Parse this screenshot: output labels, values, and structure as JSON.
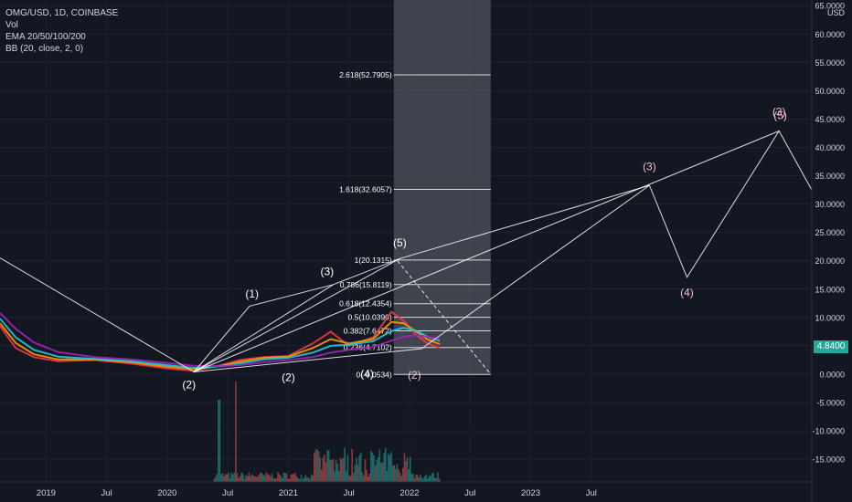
{
  "legend": {
    "symbol": "OMG/USD, 1D, COINBASE",
    "vol": "Vol",
    "ema": "EMA 20/50/100/200",
    "bb": "BB (20, close, 2, 0)"
  },
  "price_axis": {
    "currency": "USD",
    "current_price": "4.8400"
  },
  "colors": {
    "background": "#131722",
    "grid": "#1e222d",
    "text": "#d1d4dc",
    "price_tag": "#26a69a",
    "ema20": "#f23645",
    "ema50": "#ff9800",
    "ema100": "#26c6da",
    "ema200": "#9c27b0",
    "fib_zone": "#5d606b"
  },
  "chart_data": {
    "type": "line",
    "y_ticks": [
      "65.0000",
      "60.0000",
      "55.0000",
      "50.0000",
      "45.0000",
      "40.0000",
      "35.0000",
      "30.0000",
      "25.0000",
      "20.0000",
      "15.0000",
      "10.0000",
      "5.0000",
      "0.0000",
      "-5.0000",
      "-10.0000",
      "-15.0000"
    ],
    "y_tick_values": [
      65,
      60,
      55,
      50,
      45,
      40,
      35,
      30,
      25,
      20,
      15,
      10,
      5,
      0,
      -5,
      -10,
      -15
    ],
    "ylim": [
      -19,
      66
    ],
    "x_ticks": [
      "2019",
      "Jul",
      "2020",
      "Jul",
      "2021",
      "Jul",
      "2022",
      "Jul",
      "2023",
      "Jul"
    ],
    "x_tick_years": [
      2019.0,
      2019.5,
      2020.0,
      2020.5,
      2021.0,
      2021.5,
      2022.0,
      2022.5,
      2023.0,
      2023.5
    ],
    "xlim": [
      2018.62,
      2025.32
    ],
    "fibonacci": {
      "t_start": 2021.87,
      "t_end": 2022.67,
      "levels": [
        {
          "label": "2.618(52.7905)",
          "value": 52.7905
        },
        {
          "label": "1.618(32.6057)",
          "value": 32.6057
        },
        {
          "label": "1(20.1315)",
          "value": 20.1315
        },
        {
          "label": "0.786(15.8119)",
          "value": 15.8119
        },
        {
          "label": "0.618(12.4354)",
          "value": 12.4354
        },
        {
          "label": "0.5(10.0390)",
          "value": 10.039
        },
        {
          "label": "0.382(7.6472)",
          "value": 7.6472
        },
        {
          "label": "0.236(4.7102)",
          "value": 4.7102
        },
        {
          "label": "0(-0.0534)",
          "value": -0.0534
        }
      ]
    },
    "projection": {
      "points": [
        [
          2018.62,
          20.5
        ],
        [
          2020.22,
          0.4
        ],
        [
          2022.1,
          4.5
        ],
        [
          2023.98,
          33.3
        ],
        [
          2024.29,
          17.1
        ],
        [
          2025.05,
          42.9
        ],
        [
          2025.32,
          32.5
        ]
      ]
    },
    "channel_lines": [
      [
        [
          2020.22,
          0.4
        ],
        [
          2020.68,
          12.0
        ],
        [
          2021.37,
          15.8
        ],
        [
          2021.92,
          20.4
        ],
        [
          2023.98,
          33.3
        ]
      ],
      [
        [
          2020.22,
          0.4
        ],
        [
          2021.92,
          20.4
        ]
      ],
      [
        [
          2020.22,
          0.4
        ],
        [
          2021.37,
          15.8
        ]
      ],
      [
        [
          2020.22,
          0.4
        ],
        [
          2025.05,
          42.9
        ]
      ]
    ],
    "dashed_line": [
      [
        2021.9,
        20.0
      ],
      [
        2022.67,
        0.0
      ]
    ],
    "wave_labels": [
      {
        "label": "(1)",
        "t": 2020.7,
        "v": 13.5,
        "color": "#ffffff"
      },
      {
        "label": "(2)",
        "t": 2020.18,
        "v": -2.5,
        "color": "#ffffff"
      },
      {
        "label": "(2)",
        "t": 2021.0,
        "v": -1.2,
        "color": "#ffffff"
      },
      {
        "label": "(3)",
        "t": 2021.32,
        "v": 17.5,
        "color": "#ffffff"
      },
      {
        "label": "(4)",
        "t": 2021.65,
        "v": -0.6,
        "color": "#ffffff"
      },
      {
        "label": "(5)",
        "t": 2021.92,
        "v": 22.5,
        "color": "#ffffff"
      },
      {
        "label": "(2)",
        "t": 2022.04,
        "v": -0.8,
        "color": "#f8bbd0"
      },
      {
        "label": "(3)",
        "t": 2023.98,
        "v": 36.0,
        "color": "#f8bbd0"
      },
      {
        "label": "(4)",
        "t": 2024.29,
        "v": 13.8,
        "color": "#f8bbd0"
      },
      {
        "label": "(3)",
        "t": 2025.05,
        "v": 45.6,
        "color": "#f8bbd0"
      },
      {
        "label": "(5)",
        "t": 2025.06,
        "v": 45.0,
        "color": "#f8bbd0"
      }
    ],
    "series": [
      {
        "name": "EMA 20",
        "color": "#f23645",
        "points": [
          [
            2018.62,
            8.5
          ],
          [
            2018.75,
            4.6
          ],
          [
            2018.9,
            3.0
          ],
          [
            2019.1,
            2.3
          ],
          [
            2019.4,
            2.5
          ],
          [
            2019.7,
            1.9
          ],
          [
            2020.0,
            1.0
          ],
          [
            2020.22,
            0.6
          ],
          [
            2020.45,
            1.6
          ],
          [
            2020.6,
            2.5
          ],
          [
            2020.8,
            3.0
          ],
          [
            2021.0,
            3.2
          ],
          [
            2021.2,
            5.4
          ],
          [
            2021.35,
            7.5
          ],
          [
            2021.5,
            5.0
          ],
          [
            2021.7,
            6.5
          ],
          [
            2021.85,
            11.0
          ],
          [
            2021.95,
            9.5
          ],
          [
            2022.05,
            7.0
          ],
          [
            2022.15,
            5.4
          ],
          [
            2022.25,
            4.6
          ]
        ]
      },
      {
        "name": "EMA 50",
        "color": "#ff9800",
        "points": [
          [
            2018.62,
            9.0
          ],
          [
            2018.75,
            5.5
          ],
          [
            2018.9,
            3.5
          ],
          [
            2019.1,
            2.6
          ],
          [
            2019.4,
            2.6
          ],
          [
            2019.7,
            2.1
          ],
          [
            2020.0,
            1.3
          ],
          [
            2020.22,
            0.9
          ],
          [
            2020.45,
            1.5
          ],
          [
            2020.6,
            2.2
          ],
          [
            2020.8,
            2.9
          ],
          [
            2021.0,
            3.1
          ],
          [
            2021.2,
            4.6
          ],
          [
            2021.35,
            6.2
          ],
          [
            2021.5,
            5.4
          ],
          [
            2021.7,
            6.2
          ],
          [
            2021.85,
            9.2
          ],
          [
            2021.95,
            9.0
          ],
          [
            2022.05,
            7.6
          ],
          [
            2022.15,
            6.1
          ],
          [
            2022.25,
            5.3
          ]
        ]
      },
      {
        "name": "EMA 100",
        "color": "#26c6da",
        "points": [
          [
            2018.62,
            9.8
          ],
          [
            2018.75,
            6.5
          ],
          [
            2018.9,
            4.3
          ],
          [
            2019.1,
            3.1
          ],
          [
            2019.4,
            2.7
          ],
          [
            2019.7,
            2.3
          ],
          [
            2020.0,
            1.6
          ],
          [
            2020.22,
            1.1
          ],
          [
            2020.45,
            1.4
          ],
          [
            2020.6,
            1.9
          ],
          [
            2020.8,
            2.6
          ],
          [
            2021.0,
            2.9
          ],
          [
            2021.2,
            3.8
          ],
          [
            2021.35,
            5.0
          ],
          [
            2021.5,
            5.2
          ],
          [
            2021.7,
            5.8
          ],
          [
            2021.85,
            7.6
          ],
          [
            2021.95,
            8.2
          ],
          [
            2022.05,
            7.7
          ],
          [
            2022.15,
            6.6
          ],
          [
            2022.25,
            5.9
          ]
        ]
      },
      {
        "name": "EMA 200",
        "color": "#9c27b0",
        "points": [
          [
            2018.62,
            10.8
          ],
          [
            2018.75,
            8.0
          ],
          [
            2018.9,
            5.6
          ],
          [
            2019.1,
            3.9
          ],
          [
            2019.4,
            3.0
          ],
          [
            2019.7,
            2.6
          ],
          [
            2020.0,
            2.0
          ],
          [
            2020.22,
            1.5
          ],
          [
            2020.45,
            1.4
          ],
          [
            2020.6,
            1.6
          ],
          [
            2020.8,
            2.1
          ],
          [
            2021.0,
            2.5
          ],
          [
            2021.2,
            3.0
          ],
          [
            2021.35,
            3.8
          ],
          [
            2021.5,
            4.3
          ],
          [
            2021.7,
            4.8
          ],
          [
            2021.85,
            5.9
          ],
          [
            2021.95,
            6.6
          ],
          [
            2022.05,
            6.9
          ],
          [
            2022.15,
            6.6
          ],
          [
            2022.25,
            6.2
          ]
        ]
      }
    ]
  }
}
